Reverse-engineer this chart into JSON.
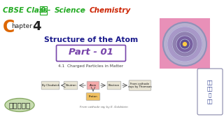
{
  "bg_color": "#ffffff",
  "green_color": "#22aa22",
  "red_color": "#cc2200",
  "orange_color": "#dd6600",
  "dark_blue": "#1a1a8c",
  "purple_color": "#7744aa",
  "part_border_color": "#7744aa",
  "tamil_bg_color": "#c8ddb0",
  "tamil_border_color": "#88aa66",
  "node_bg": "#e8e4d4",
  "atom_highlight_color": "#f4aaaa",
  "proton_highlight_color": "#f0c060",
  "arrow_color": "#555555",
  "flow_nodes": [
    "By Chadwick",
    "Neutron",
    "Atom",
    "Electron",
    "From cathode\nrays by Thomson"
  ],
  "flow_bottom": "Proton",
  "flow_bottom_note": "From cathode ray by E. Goldstein",
  "tamil_text": "தமிழ்"
}
